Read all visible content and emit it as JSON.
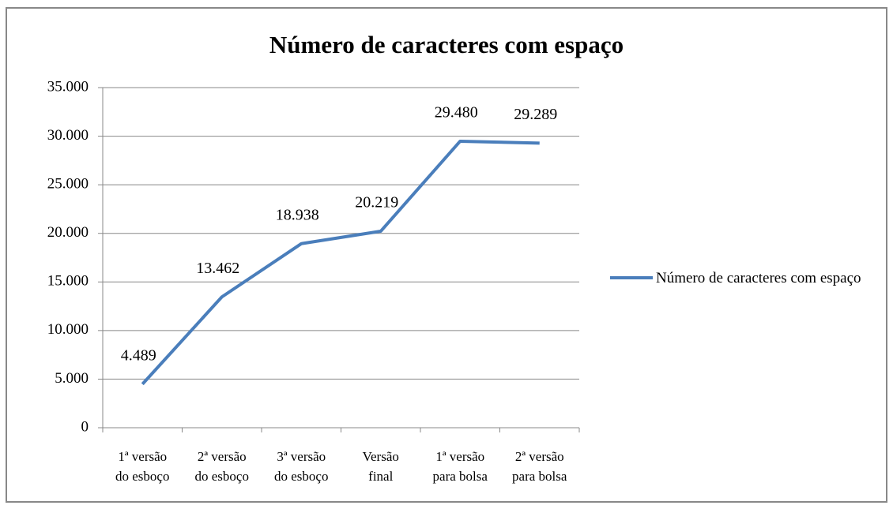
{
  "chart_data": {
    "type": "line",
    "title": "Número de caracteres com espaço",
    "categories": [
      [
        "1ª versão",
        "do esboço"
      ],
      [
        "2ª versão",
        "do esboço"
      ],
      [
        "3ª versão",
        "do esboço"
      ],
      [
        "Versão",
        "final"
      ],
      [
        "1ª versão",
        "para bolsa"
      ],
      [
        "2ª versão",
        "para bolsa"
      ]
    ],
    "series": [
      {
        "name": "Número de caracteres com espaço",
        "color": "#4a7ebb",
        "values": [
          4489,
          13462,
          18938,
          20219,
          29480,
          29289
        ],
        "value_labels": [
          "4.489",
          "13.462",
          "18.938",
          "20.219",
          "29.480",
          "29.289"
        ]
      }
    ],
    "ylim": [
      0,
      35000
    ],
    "yticks": [
      0,
      {
        "value": 5000,
        "label": "5.000"
      },
      {
        "value": 10000,
        "label": "10.000"
      },
      {
        "value": 15000,
        "label": "15.000"
      },
      {
        "value": 20000,
        "label": "20.000"
      },
      {
        "value": 25000,
        "label": "25.000"
      },
      {
        "value": 30000,
        "label": "30.000"
      },
      {
        "value": 35000,
        "label": "35.000"
      }
    ],
    "grid": true,
    "legend": "right"
  }
}
